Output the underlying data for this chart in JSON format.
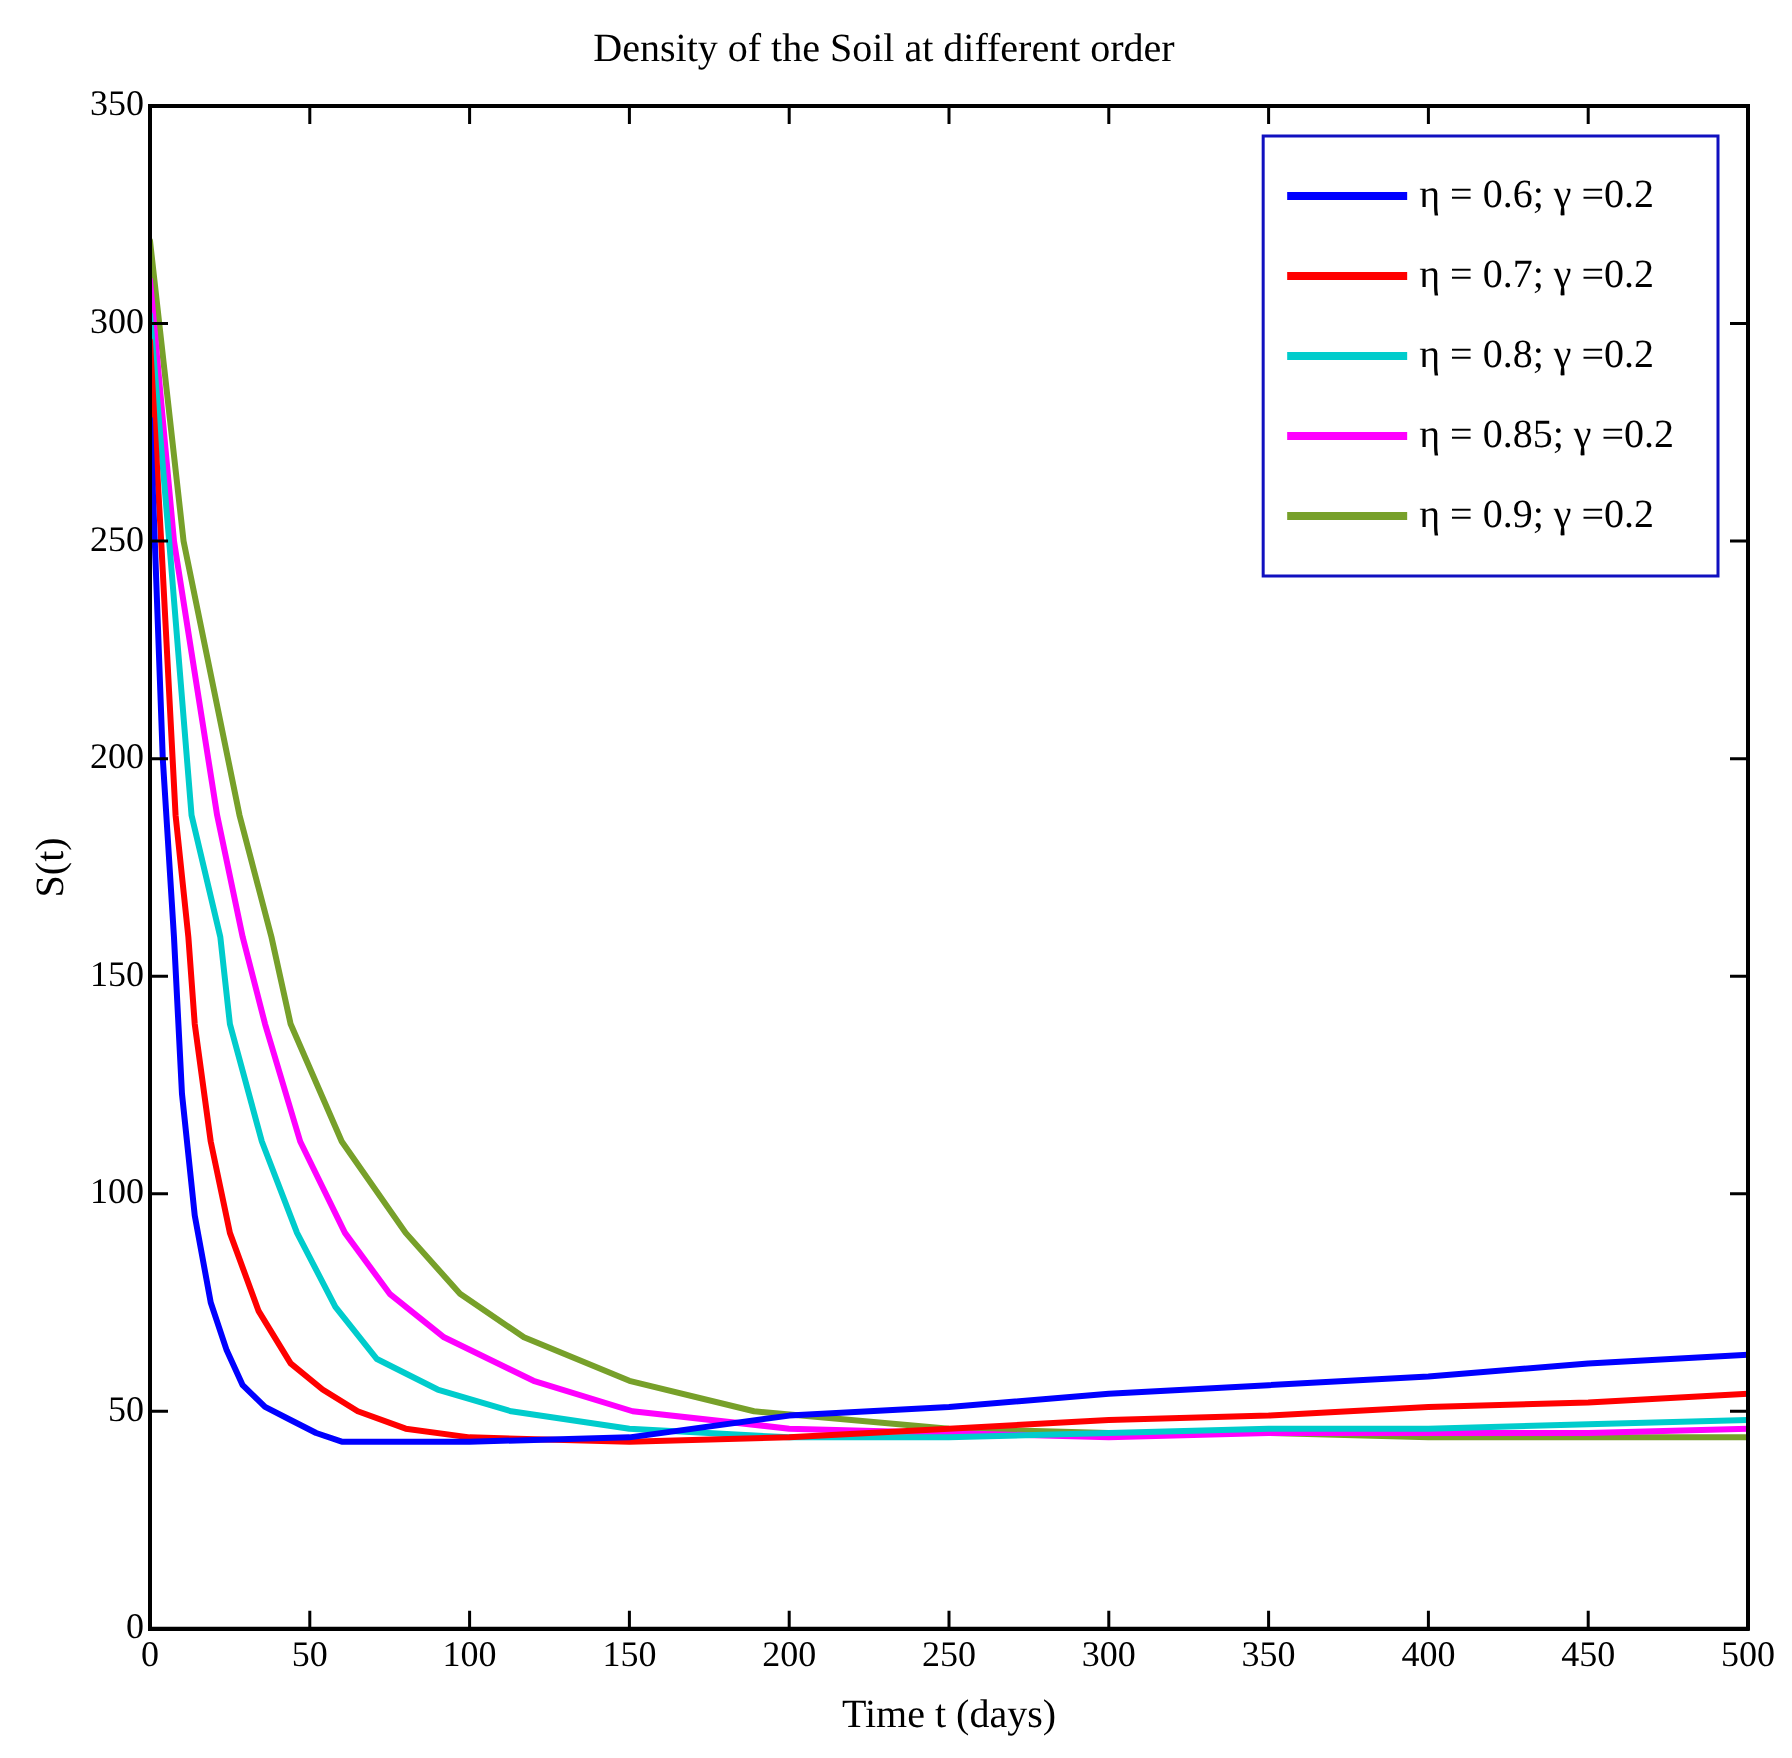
{
  "chart_data": {
    "type": "line",
    "title": "Density of the Soil at different order",
    "xlabel": "Time t (days)",
    "ylabel": "S(t)",
    "xlim": [
      0,
      500
    ],
    "ylim": [
      0,
      350
    ],
    "xticks": [
      0,
      50,
      100,
      150,
      200,
      250,
      300,
      350,
      400,
      450,
      500
    ],
    "yticks": [
      0,
      50,
      100,
      150,
      200,
      250,
      300,
      350
    ],
    "grid": false,
    "legend": "top right",
    "marker": "none",
    "line_style": "solid",
    "series": [
      {
        "name": "η = 0.6; γ =0.2",
        "color": "#0000ff",
        "x": [
          0,
          1.5,
          4,
          7.5,
          10,
          14,
          19,
          24,
          29,
          36,
          44,
          52,
          60,
          80,
          100,
          150,
          200,
          250,
          300,
          350,
          400,
          450,
          500
        ],
        "values": [
          278,
          250,
          200,
          159,
          123,
          95,
          75,
          64,
          56,
          51,
          48,
          45,
          43,
          43,
          43,
          44,
          49,
          51,
          54,
          56,
          58,
          61,
          63
        ]
      },
      {
        "name": "η = 0.7; γ =0.2",
        "color": "#ff0000",
        "x": [
          0,
          3.5,
          8,
          12,
          14,
          19,
          25,
          34,
          44,
          54,
          65,
          80,
          100,
          150,
          200,
          250,
          300,
          350,
          400,
          450,
          500
        ],
        "values": [
          296,
          250,
          187,
          159,
          139,
          112,
          91,
          73,
          61,
          55,
          50,
          46,
          44,
          43,
          44,
          46,
          48,
          49,
          51,
          52,
          54
        ]
      },
      {
        "name": "η = 0.8; γ =0.2",
        "color": "#00cccc",
        "x": [
          0,
          6,
          13,
          22,
          25,
          35,
          46,
          58,
          71,
          90,
          113,
          150,
          200,
          250,
          300,
          350,
          400,
          450,
          500
        ],
        "values": [
          302,
          250,
          187,
          159,
          139,
          112,
          91,
          74,
          62,
          55,
          50,
          46,
          44,
          44,
          45,
          46,
          46,
          47,
          48
        ]
      },
      {
        "name": "η = 0.85; γ =0.2",
        "color": "#ff00ff",
        "x": [
          0,
          7.5,
          21,
          29,
          36,
          47,
          61,
          75,
          92,
          120,
          151,
          200,
          250,
          300,
          350,
          400,
          450,
          500
        ],
        "values": [
          310,
          250,
          187,
          159,
          139,
          112,
          91,
          77,
          67,
          57,
          50,
          46,
          45,
          44,
          45,
          45,
          45,
          46
        ]
      },
      {
        "name": "η = 0.9; γ =0.2",
        "color": "#77a02a",
        "x": [
          0,
          10.5,
          28,
          38,
          44,
          60,
          80,
          97,
          117,
          150,
          189,
          250,
          300,
          350,
          400,
          450,
          500
        ],
        "values": [
          319,
          250,
          187,
          159,
          139,
          112,
          91,
          77,
          67,
          57,
          50,
          46,
          45,
          45,
          44,
          44,
          44
        ]
      }
    ]
  }
}
